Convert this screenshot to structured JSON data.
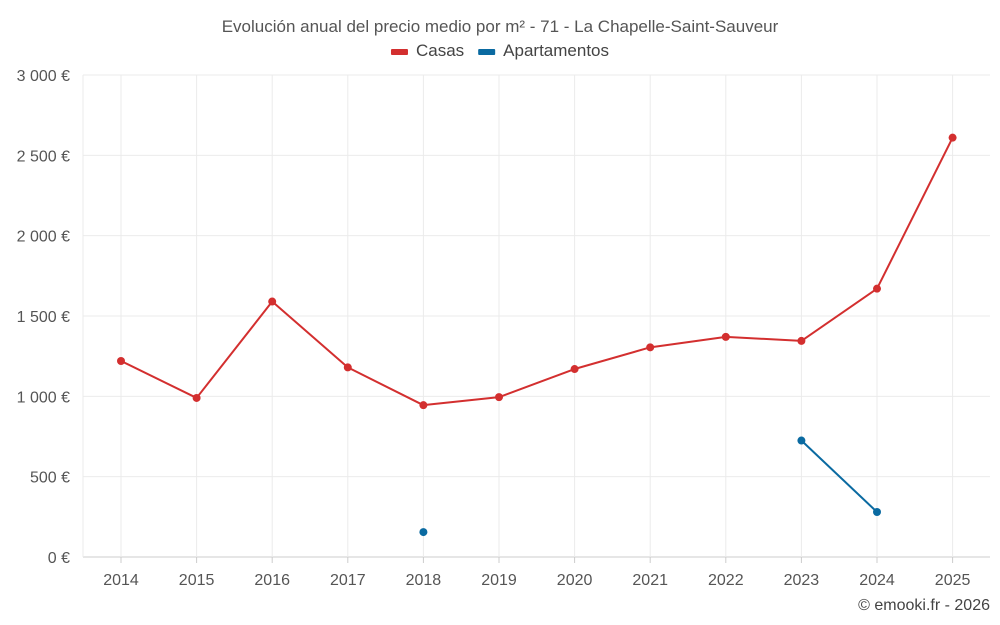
{
  "chart_data": {
    "type": "line",
    "title": "Evolución anual del precio medio por m² - 71 - La Chapelle-Saint-Sauveur",
    "x": [
      "2014",
      "2015",
      "2016",
      "2017",
      "2018",
      "2019",
      "2020",
      "2021",
      "2022",
      "2023",
      "2024",
      "2025"
    ],
    "ylim": [
      0,
      3000
    ],
    "yticks": [
      0,
      500,
      1000,
      1500,
      2000,
      2500,
      3000
    ],
    "ytick_labels": [
      "0 €",
      "500 €",
      "1 000 €",
      "1 500 €",
      "2 000 €",
      "2 500 €",
      "3 000 €"
    ],
    "legend_position": "top-center",
    "grid": true,
    "series": [
      {
        "name": "Casas",
        "color": "#d32f2f",
        "values": [
          1220,
          990,
          1590,
          1180,
          945,
          995,
          1170,
          1305,
          1370,
          1345,
          1670,
          2610
        ]
      },
      {
        "name": "Apartamentos",
        "color": "#0a6aa1",
        "values": [
          null,
          null,
          null,
          null,
          155,
          null,
          null,
          null,
          null,
          725,
          280,
          null
        ]
      }
    ]
  },
  "footer": {
    "credit": "© emooki.fr - 2026"
  }
}
